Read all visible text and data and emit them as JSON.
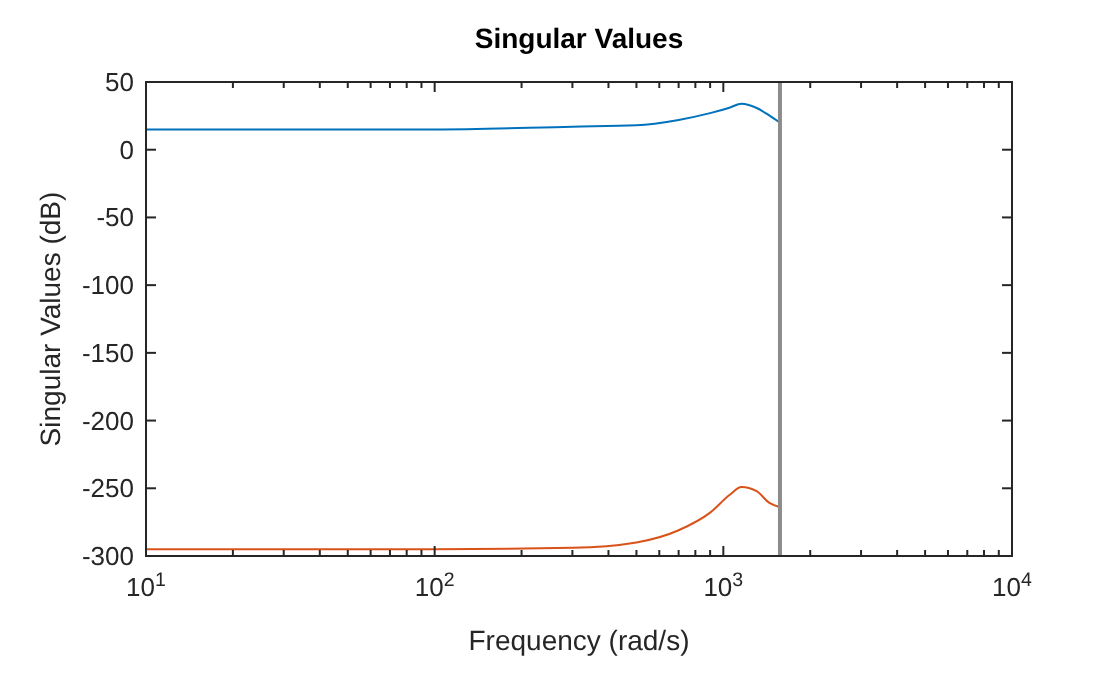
{
  "chart_data": {
    "type": "line",
    "title": "Singular Values",
    "xlabel": "Frequency (rad/s)",
    "ylabel": "Singular Values (dB)",
    "log": "x",
    "xlim": [
      10,
      10000
    ],
    "ylim": [
      -300,
      50
    ],
    "xticks": [
      {
        "value": 10,
        "label": "10$^{1}$"
      },
      {
        "value": 20,
        "label": null
      },
      {
        "value": 30,
        "label": null
      },
      {
        "value": 40,
        "label": null
      },
      {
        "value": 50,
        "label": null
      },
      {
        "value": 60,
        "label": null
      },
      {
        "value": 70,
        "label": null
      },
      {
        "value": 80,
        "label": null
      },
      {
        "value": 90,
        "label": null
      },
      {
        "value": 100,
        "label": "10$^{2}$"
      },
      {
        "value": 200,
        "label": null
      },
      {
        "value": 300,
        "label": null
      },
      {
        "value": 400,
        "label": null
      },
      {
        "value": 500,
        "label": null
      },
      {
        "value": 600,
        "label": null
      },
      {
        "value": 700,
        "label": null
      },
      {
        "value": 800,
        "label": null
      },
      {
        "value": 900,
        "label": null
      },
      {
        "value": 1000,
        "label": "10$^{3}$"
      },
      {
        "value": 2000,
        "label": null
      },
      {
        "value": 3000,
        "label": null
      },
      {
        "value": 4000,
        "label": null
      },
      {
        "value": 5000,
        "label": null
      },
      {
        "value": 6000,
        "label": null
      },
      {
        "value": 7000,
        "label": null
      },
      {
        "value": 8000,
        "label": null
      },
      {
        "value": 9000,
        "label": null
      },
      {
        "value": 10000,
        "label": "10$^{4}$"
      }
    ],
    "yticks": [
      -300,
      -250,
      -200,
      -150,
      -100,
      -50,
      0,
      50
    ],
    "grid": false,
    "x": [
      10,
      100,
      300,
      500,
      700,
      900,
      1050,
      1156,
      1300,
      1450,
      1571
    ],
    "series": [
      {
        "color": "#0072bd",
        "values": [
          15,
          15,
          17,
          18,
          22,
          27,
          31,
          34,
          31,
          25,
          20
        ]
      },
      {
        "color": "#d95319",
        "values": [
          -295,
          -295,
          -294,
          -290,
          -281,
          -268,
          -255,
          -249,
          -252,
          -261,
          -264
        ]
      }
    ],
    "ref_lines": [
      {
        "axis": "x",
        "value": 1571,
        "color": "#8c8c8c"
      }
    ]
  }
}
